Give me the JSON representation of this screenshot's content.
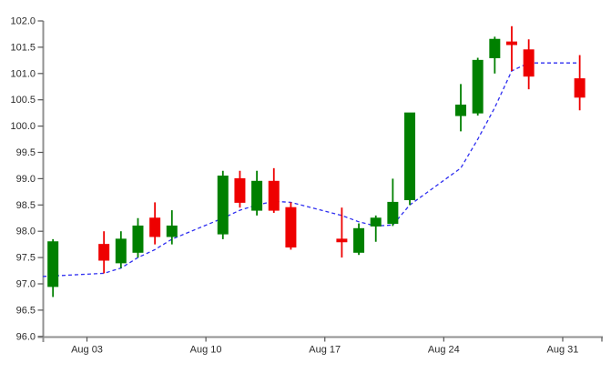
{
  "page": {
    "background": "#ffffff"
  },
  "chart_data": {
    "type": "candlestick",
    "title": "",
    "grid": false,
    "legend": null,
    "x_axis": {
      "tick_labels": [
        "Aug 03",
        "Aug 10",
        "Aug 17",
        "Aug 24",
        "Aug 31"
      ],
      "tick_days": [
        0,
        7,
        14,
        21,
        28
      ],
      "day_range": [
        -2.6,
        30.4
      ],
      "has_unlabeled_end_tick": true
    },
    "y_axis": {
      "min": 96.0,
      "max": 102.0,
      "step": 0.5,
      "tick_labels": [
        "96.0",
        "96.5",
        "97.0",
        "97.5",
        "98.0",
        "98.5",
        "99.0",
        "99.5",
        "100.0",
        "100.5",
        "101.0",
        "101.5",
        "102.0"
      ]
    },
    "candles": [
      {
        "day": -2,
        "open": 96.95,
        "high": 97.85,
        "low": 96.75,
        "close": 97.8
      },
      {
        "day": 1,
        "open": 97.75,
        "high": 98.0,
        "low": 97.2,
        "close": 97.45
      },
      {
        "day": 2,
        "open": 97.4,
        "high": 98.0,
        "low": 97.3,
        "close": 97.85
      },
      {
        "day": 3,
        "open": 97.6,
        "high": 98.25,
        "low": 97.5,
        "close": 98.1
      },
      {
        "day": 4,
        "open": 98.25,
        "high": 98.55,
        "low": 97.75,
        "close": 97.9
      },
      {
        "day": 5,
        "open": 97.9,
        "high": 98.4,
        "low": 97.75,
        "close": 98.1
      },
      {
        "day": 8,
        "open": 97.95,
        "high": 99.15,
        "low": 97.85,
        "close": 99.05
      },
      {
        "day": 9,
        "open": 99.0,
        "high": 99.15,
        "low": 98.45,
        "close": 98.55
      },
      {
        "day": 10,
        "open": 98.4,
        "high": 99.15,
        "low": 98.3,
        "close": 98.95
      },
      {
        "day": 11,
        "open": 98.95,
        "high": 99.2,
        "low": 98.35,
        "close": 98.4
      },
      {
        "day": 12,
        "open": 98.45,
        "high": 98.55,
        "low": 97.65,
        "close": 97.7
      },
      {
        "day": 15,
        "open": 97.85,
        "high": 98.45,
        "low": 97.5,
        "close": 97.8
      },
      {
        "day": 16,
        "open": 97.6,
        "high": 98.15,
        "low": 97.55,
        "close": 98.05
      },
      {
        "day": 17,
        "open": 98.1,
        "high": 98.3,
        "low": 97.8,
        "close": 98.25
      },
      {
        "day": 18,
        "open": 98.15,
        "high": 99.0,
        "low": 98.1,
        "close": 98.55
      },
      {
        "day": 19,
        "open": 98.6,
        "high": 100.25,
        "low": 98.5,
        "close": 100.25
      },
      {
        "day": 22,
        "open": 100.2,
        "high": 100.8,
        "low": 99.9,
        "close": 100.4
      },
      {
        "day": 23,
        "open": 100.25,
        "high": 101.3,
        "low": 100.2,
        "close": 101.25
      },
      {
        "day": 24,
        "open": 101.3,
        "high": 101.7,
        "low": 101.0,
        "close": 101.65
      },
      {
        "day": 25,
        "open": 101.6,
        "high": 101.9,
        "low": 101.05,
        "close": 101.55
      },
      {
        "day": 26,
        "open": 101.45,
        "high": 101.65,
        "low": 100.7,
        "close": 100.95
      },
      {
        "day": 29,
        "open": 100.9,
        "high": 101.35,
        "low": 100.3,
        "close": 100.55
      }
    ],
    "ma_dashed_line": {
      "points": [
        [
          -2.6,
          97.14
        ],
        [
          -2,
          97.15
        ],
        [
          1,
          97.2
        ],
        [
          2,
          97.3
        ],
        [
          3,
          97.5
        ],
        [
          4,
          97.65
        ],
        [
          5,
          97.85
        ],
        [
          8,
          98.25
        ],
        [
          9,
          98.4
        ],
        [
          10,
          98.5
        ],
        [
          11,
          98.57
        ],
        [
          12,
          98.55
        ],
        [
          15,
          98.3
        ],
        [
          16,
          98.18
        ],
        [
          17,
          98.1
        ],
        [
          18,
          98.12
        ],
        [
          19,
          98.5
        ],
        [
          22,
          99.2
        ],
        [
          23,
          99.75
        ],
        [
          24,
          100.35
        ],
        [
          25,
          101.05
        ],
        [
          26,
          101.2
        ],
        [
          29,
          101.2
        ]
      ]
    }
  },
  "style": {
    "up_color": "#008000",
    "down_color": "#ee0000",
    "ma_color": "#2e2ef0",
    "spine_color": "#909090",
    "tick_color": "#555555",
    "label_color": "#2b2b2b"
  }
}
